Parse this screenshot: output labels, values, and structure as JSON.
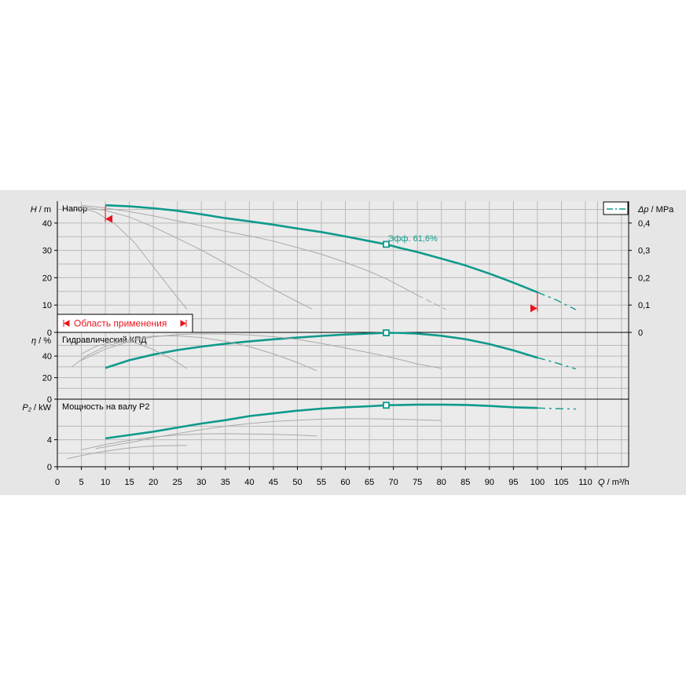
{
  "colors": {
    "main": "#0f9a8c",
    "gray": "#aaaaaa",
    "grid": "#b9b9b9",
    "red": "#e8141c",
    "bg": "#e6e6e6"
  },
  "chart_data": [
    {
      "type": "line",
      "panel": "head",
      "title": "Напор",
      "ylabel_italic": "H",
      "ylabel_unit": " / m",
      "ylim": [
        0,
        48
      ],
      "yticks": [
        0,
        10,
        20,
        30,
        40
      ],
      "y2label_italic": "Δp",
      "y2label_unit": " / MPa",
      "y2lim": [
        0,
        0.48
      ],
      "y2ticks": [
        "0",
        "0,1",
        "0,2",
        "0,3",
        "0,4"
      ],
      "series": [
        {
          "role": "main",
          "x": [
            10,
            15,
            20,
            25,
            30,
            35,
            40,
            45,
            50,
            55,
            60,
            65,
            68.5,
            72,
            75,
            80,
            85,
            90,
            95,
            100
          ],
          "y": [
            46.5,
            46.1,
            45.4,
            44.5,
            43.2,
            41.8,
            40.6,
            39.4,
            38,
            36.7,
            35.1,
            33.4,
            32.2,
            30.6,
            29.4,
            27,
            24.5,
            21.5,
            18.2,
            14.7
          ]
        },
        {
          "role": "main-ext",
          "x": [
            100,
            104,
            108
          ],
          "y": [
            14.7,
            11.8,
            8.3
          ]
        },
        {
          "role": "gray",
          "x": [
            5,
            10,
            15,
            20,
            25,
            30,
            35,
            40,
            45,
            50,
            55,
            60,
            65,
            68.5,
            72,
            75
          ],
          "y": [
            46.5,
            45.5,
            44.2,
            42.6,
            40.8,
            39,
            37,
            35.3,
            33.4,
            31,
            28.6,
            25.6,
            22.3,
            19.6,
            16.4,
            13.6
          ]
        },
        {
          "role": "gray-dashed",
          "x": [
            75,
            78,
            81
          ],
          "y": [
            13.6,
            11,
            8.3
          ]
        },
        {
          "role": "gray",
          "x": [
            5,
            10,
            15,
            20,
            25,
            30,
            35,
            40,
            45,
            50,
            53
          ],
          "y": [
            46,
            44.6,
            42.2,
            38.6,
            34.4,
            30.1,
            25.3,
            20.8,
            15.8,
            11.2,
            8.6
          ]
        },
        {
          "role": "gray",
          "x": [
            4,
            8,
            12,
            16,
            20,
            24,
            27
          ],
          "y": [
            46,
            44,
            39.7,
            33,
            24,
            15,
            8.5
          ]
        }
      ],
      "efficiency_point": {
        "x": 68.5,
        "y": 32.2,
        "label": "Эфф.  61,6%"
      },
      "limit_markers": [
        {
          "x": 10,
          "y": 41.5
        },
        {
          "x": 100,
          "y": 8.8
        }
      ],
      "range_label": "Область применения"
    },
    {
      "type": "line",
      "panel": "efficiency",
      "title": "Гидравлический КПД",
      "ylabel_italic": "η",
      "ylabel_unit": " / %",
      "ylim": [
        0,
        62
      ],
      "yticks": [
        0,
        20,
        40
      ],
      "series": [
        {
          "role": "main",
          "x": [
            10,
            15,
            20,
            25,
            30,
            35,
            40,
            45,
            50,
            55,
            60,
            65,
            68.5,
            72,
            75,
            80,
            85,
            90,
            95,
            100
          ],
          "y": [
            29,
            36.2,
            41.4,
            45.6,
            48.8,
            51.5,
            53.7,
            55.6,
            57.2,
            58.7,
            60,
            60.9,
            61.6,
            61.4,
            60.8,
            58.9,
            55.7,
            51.1,
            45.3,
            38.5
          ]
        },
        {
          "role": "main-ext",
          "x": [
            100,
            104,
            108
          ],
          "y": [
            38.5,
            33.6,
            28.1
          ]
        },
        {
          "role": "gray",
          "x": [
            5,
            10,
            15,
            20,
            25,
            30,
            35,
            40,
            45,
            50,
            55,
            60,
            65,
            68.5,
            72,
            75,
            80
          ],
          "y": [
            36,
            46.5,
            53.6,
            57.8,
            60,
            60.6,
            60.5,
            59.7,
            58,
            55.5,
            51.8,
            47.5,
            43,
            39.8,
            36.1,
            32.7,
            28.6
          ]
        },
        {
          "role": "gray",
          "x": [
            3,
            6,
            10,
            15,
            20,
            25,
            30,
            35,
            40,
            45,
            50,
            54
          ],
          "y": [
            30,
            40,
            49,
            55.2,
            58.5,
            58.8,
            57.2,
            53.8,
            48.8,
            42,
            34,
            26.5
          ]
        },
        {
          "role": "gray",
          "x": [
            5,
            8,
            12,
            16,
            20,
            24,
            27
          ],
          "y": [
            42,
            49,
            53.5,
            52.8,
            46,
            37,
            28.5
          ]
        }
      ]
    },
    {
      "type": "line",
      "panel": "power",
      "title": "Мощность на валу P2",
      "ylabel_italic": "P₂",
      "ylabel_unit": " / kW",
      "ylim": [
        0,
        10
      ],
      "yticks": [
        0,
        4
      ],
      "series": [
        {
          "role": "main",
          "x": [
            10,
            15,
            20,
            25,
            30,
            35,
            40,
            45,
            50,
            55,
            60,
            65,
            68.5,
            72,
            75,
            80,
            85,
            90,
            95,
            100
          ],
          "y": [
            4.2,
            4.7,
            5.2,
            5.8,
            6.4,
            6.9,
            7.5,
            7.9,
            8.3,
            8.6,
            8.8,
            8.95,
            9.1,
            9.15,
            9.2,
            9.2,
            9.15,
            9.0,
            8.8,
            8.7
          ]
        },
        {
          "role": "main-ext",
          "x": [
            100,
            104,
            108
          ],
          "y": [
            8.7,
            8.6,
            8.55
          ]
        },
        {
          "role": "gray",
          "x": [
            8,
            12,
            16,
            20,
            25,
            30,
            35,
            40,
            45,
            50,
            55,
            60,
            65,
            70,
            75,
            80
          ],
          "y": [
            2.7,
            3.2,
            3.7,
            4.3,
            4.9,
            5.5,
            6.0,
            6.4,
            6.7,
            6.9,
            7.05,
            7.1,
            7.1,
            7.05,
            6.95,
            6.85
          ]
        },
        {
          "role": "gray",
          "x": [
            5,
            10,
            15,
            20,
            25,
            30,
            35,
            40,
            45,
            50,
            54
          ],
          "y": [
            2.5,
            3.3,
            3.9,
            4.4,
            4.7,
            4.85,
            4.9,
            4.85,
            4.8,
            4.7,
            4.55
          ]
        },
        {
          "role": "gray",
          "x": [
            2,
            6,
            10,
            14,
            18,
            22,
            26,
            27
          ],
          "y": [
            1.2,
            1.8,
            2.3,
            2.7,
            3.0,
            3.1,
            3.15,
            3.15
          ]
        }
      ]
    }
  ],
  "xaxis": {
    "label_italic": "Q",
    "label_unit": " / m³/h",
    "xlim": [
      0,
      119
    ],
    "ticks": [
      0,
      5,
      10,
      15,
      20,
      25,
      30,
      35,
      40,
      45,
      50,
      55,
      60,
      65,
      70,
      75,
      80,
      85,
      90,
      95,
      100,
      105,
      110
    ]
  }
}
